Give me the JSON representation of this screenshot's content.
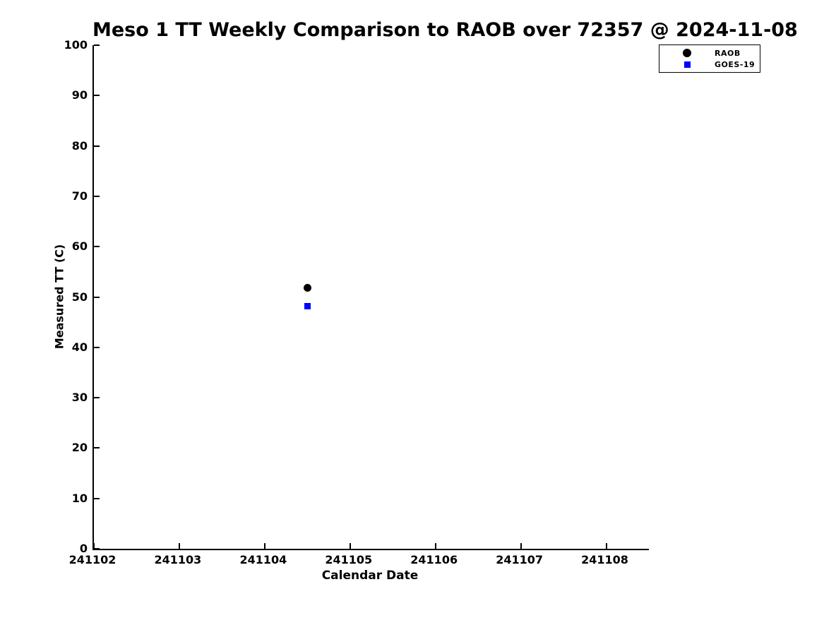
{
  "page": {
    "background_color": "#ffffff",
    "text_color": "#000000"
  },
  "chart_data": {
    "type": "scatter",
    "title": "Meso 1 TT Weekly Comparison to RAOB over 72357 @ 2024-11-08",
    "xlabel": "Calendar Date",
    "ylabel": "Measured TT (C)",
    "xlim": [
      241102,
      241108.5
    ],
    "ylim": [
      0,
      100
    ],
    "x_ticks": [
      241102,
      241103,
      241104,
      241105,
      241106,
      241107,
      241108
    ],
    "y_ticks": [
      0,
      10,
      20,
      30,
      40,
      50,
      60,
      70,
      80,
      90,
      100
    ],
    "grid": false,
    "legend_position": "top-right",
    "series": [
      {
        "name": "RAOB",
        "marker": "circle",
        "color": "#000000",
        "points": [
          {
            "x": 241104.5,
            "y": 51.8
          }
        ]
      },
      {
        "name": "GOES-19",
        "marker": "square",
        "color": "#0000ff",
        "points": [
          {
            "x": 241104.5,
            "y": 48.2
          }
        ]
      }
    ]
  }
}
